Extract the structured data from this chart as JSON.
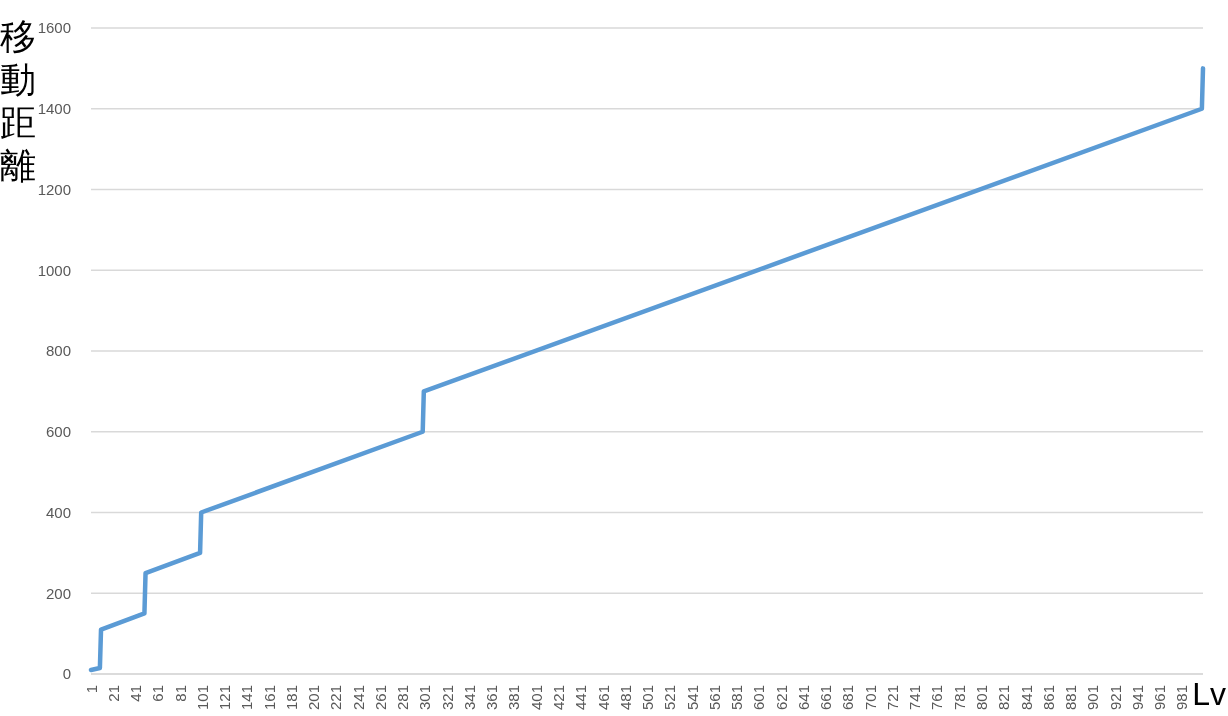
{
  "chart_data": {
    "type": "line",
    "ylabel": "移動距離",
    "xlabel": "Lv",
    "x": [
      1,
      9,
      10,
      49,
      50,
      99,
      100,
      299,
      300,
      999,
      1000
    ],
    "series": [
      {
        "color": "#5b9bd5",
        "values": [
          10,
          15,
          110,
          150,
          250,
          300,
          400,
          600,
          700,
          1400,
          1500
        ]
      }
    ],
    "xlim": [
      1,
      1000
    ],
    "xticks": [
      1,
      21,
      41,
      61,
      81,
      101,
      121,
      141,
      161,
      181,
      201,
      221,
      241,
      261,
      281,
      301,
      321,
      341,
      361,
      381,
      401,
      421,
      441,
      461,
      481,
      501,
      521,
      541,
      561,
      581,
      601,
      621,
      641,
      661,
      681,
      701,
      721,
      741,
      761,
      781,
      801,
      821,
      841,
      861,
      881,
      901,
      921,
      941,
      961,
      981
    ],
    "ylim": [
      0,
      1600
    ],
    "yticks": [
      0,
      200,
      400,
      600,
      800,
      1000,
      1200,
      1400,
      1600
    ],
    "grid": "y",
    "marker": "none",
    "line_style": "solid"
  }
}
